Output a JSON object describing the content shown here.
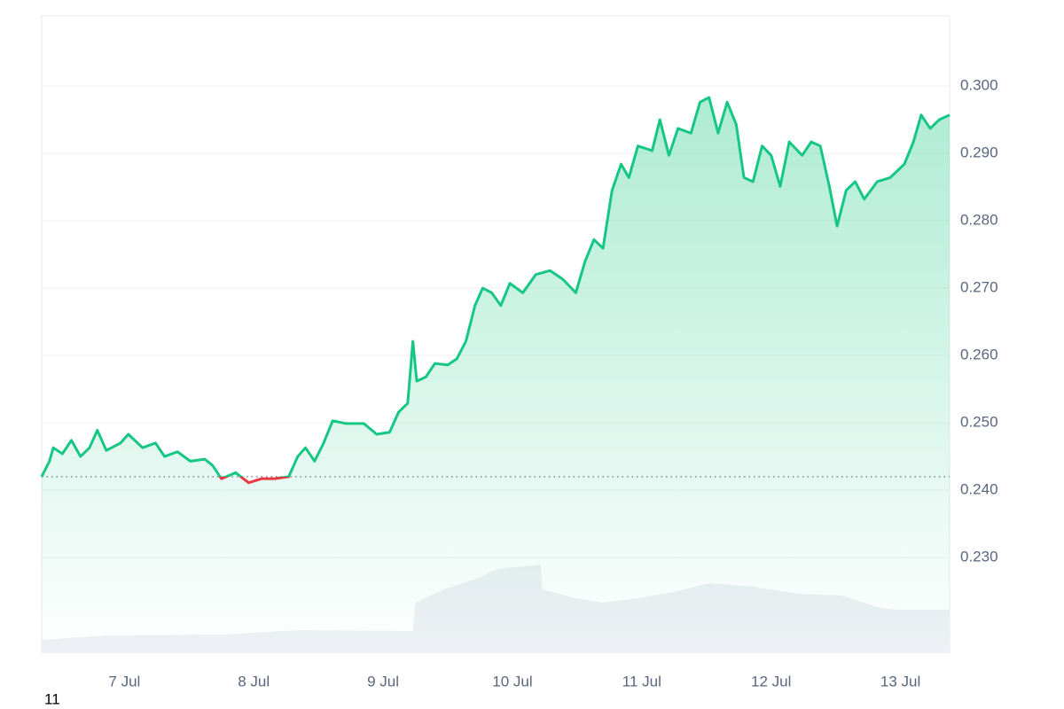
{
  "chart_data": {
    "type": "line",
    "x": [
      6.36,
      6.42,
      6.45,
      6.52,
      6.59,
      6.66,
      6.73,
      6.79,
      6.86,
      6.97,
      7.03,
      7.14,
      7.24,
      7.31,
      7.41,
      7.51,
      7.62,
      7.68,
      7.75,
      7.86,
      7.96,
      8.06,
      8.16,
      8.27,
      8.34,
      8.4,
      8.47,
      8.54,
      8.61,
      8.71,
      8.85,
      8.95,
      9.05,
      9.12,
      9.19,
      9.23,
      9.26,
      9.33,
      9.4,
      9.5,
      9.57,
      9.64,
      9.71,
      9.77,
      9.84,
      9.91,
      9.98,
      10.08,
      10.18,
      10.29,
      10.39,
      10.49,
      10.56,
      10.63,
      10.7,
      10.77,
      10.84,
      10.9,
      10.97,
      11.08,
      11.14,
      11.21,
      11.28,
      11.38,
      11.45,
      11.52,
      11.59,
      11.66,
      11.73,
      11.79,
      11.86,
      11.93,
      12.0,
      12.07,
      12.14,
      12.24,
      12.31,
      12.38,
      12.45,
      12.51,
      12.58,
      12.65,
      12.72,
      12.82,
      12.92,
      13.03,
      13.1,
      13.16,
      13.23,
      13.3,
      13.38
    ],
    "values": [
      0.242,
      0.2443,
      0.2463,
      0.2454,
      0.2474,
      0.245,
      0.2463,
      0.2489,
      0.2459,
      0.247,
      0.2483,
      0.2463,
      0.247,
      0.245,
      0.2457,
      0.2443,
      0.2446,
      0.2437,
      0.2417,
      0.2426,
      0.2411,
      0.2417,
      0.2417,
      0.242,
      0.245,
      0.2463,
      0.2443,
      0.247,
      0.2503,
      0.2499,
      0.2499,
      0.2483,
      0.2486,
      0.2516,
      0.2529,
      0.2621,
      0.2562,
      0.2568,
      0.2588,
      0.2586,
      0.2595,
      0.2621,
      0.2674,
      0.27,
      0.2693,
      0.2674,
      0.2707,
      0.2693,
      0.272,
      0.2726,
      0.2713,
      0.2693,
      0.2739,
      0.2772,
      0.2759,
      0.2845,
      0.2884,
      0.2864,
      0.2911,
      0.2904,
      0.295,
      0.2897,
      0.2937,
      0.293,
      0.2976,
      0.2983,
      0.293,
      0.2976,
      0.2943,
      0.2864,
      0.2858,
      0.2911,
      0.2897,
      0.2851,
      0.2917,
      0.2897,
      0.2917,
      0.2911,
      0.2851,
      0.2792,
      0.2845,
      0.2858,
      0.2832,
      0.2858,
      0.2864,
      0.2884,
      0.2917,
      0.2957,
      0.2937,
      0.295,
      0.2957
    ],
    "baseline": 0.242,
    "up_color": "#16c784",
    "down_color": "#ea3943",
    "volume": {
      "x": [
        6.36,
        6.86,
        7.75,
        8.34,
        9.23,
        9.25,
        9.47,
        9.74,
        9.88,
        10.22,
        10.23,
        10.49,
        10.7,
        10.97,
        11.25,
        11.52,
        11.86,
        12.21,
        12.55,
        12.82,
        12.96,
        13.38
      ],
      "values": [
        15,
        20,
        21,
        26,
        25,
        57,
        72,
        85,
        95,
        100,
        72,
        62,
        57,
        62,
        69,
        79,
        75,
        67,
        65,
        52,
        49,
        49
      ],
      "color": "#eef0f4"
    },
    "xlim": [
      6.36,
      13.38
    ],
    "xticks": [
      {
        "value": 7,
        "label": "7 Jul"
      },
      {
        "value": 8,
        "label": "8 Jul"
      },
      {
        "value": 9,
        "label": "9 Jul"
      },
      {
        "value": 10,
        "label": "10 Jul"
      },
      {
        "value": 11,
        "label": "11 Jul"
      },
      {
        "value": 12,
        "label": "12 Jul"
      },
      {
        "value": 13,
        "label": "13 Jul"
      }
    ],
    "ylim": [
      0.2158,
      0.3104
    ],
    "yticks": [
      {
        "value": 0.23,
        "label": "0.230"
      },
      {
        "value": 0.24,
        "label": "0.240"
      },
      {
        "value": 0.25,
        "label": "0.250"
      },
      {
        "value": 0.26,
        "label": "0.260"
      },
      {
        "value": 0.27,
        "label": "0.270"
      },
      {
        "value": 0.28,
        "label": "0.280"
      },
      {
        "value": 0.29,
        "label": "0.290"
      },
      {
        "value": 0.3,
        "label": "0.300"
      }
    ],
    "grid": true,
    "footer_text": "11"
  }
}
